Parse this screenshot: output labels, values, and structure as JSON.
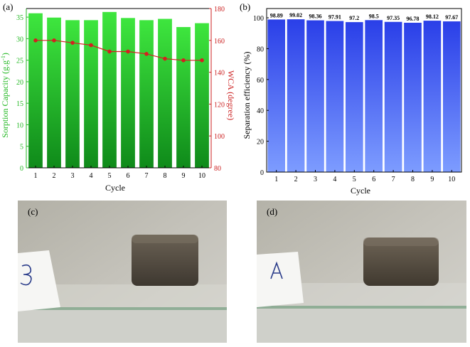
{
  "chart_data": [
    {
      "panel_label": "(a)",
      "type": "bar",
      "categories": [
        "1",
        "2",
        "3",
        "4",
        "5",
        "6",
        "7",
        "8",
        "9",
        "10"
      ],
      "xlabel": "Cycle",
      "ylabel": "Sorption Capacity (g.g",
      "ylabel_sup": "-1",
      "ylabel_tail": ")",
      "ylabel_color": "#22b822",
      "ylim": [
        0,
        37
      ],
      "yticks": [
        0,
        5,
        10,
        15,
        20,
        25,
        30,
        35
      ],
      "series": [
        {
          "values": [
            35.9,
            34.9,
            34.3,
            34.3,
            36.2,
            34.8,
            34.3,
            34.6,
            32.7,
            33.6
          ],
          "color": "#2bd42b"
        }
      ],
      "secondary": {
        "type": "line",
        "ylabel": "WCA (degree)",
        "ylabel_color": "#cc2222",
        "ylim": [
          80,
          180
        ],
        "yticks": [
          80,
          100,
          120,
          140,
          160,
          180
        ],
        "values": [
          160,
          160,
          158.5,
          157,
          153,
          153,
          151.5,
          148.5,
          147.5,
          147.5
        ],
        "color": "#d42020"
      }
    },
    {
      "panel_label": "(b)",
      "type": "bar",
      "categories": [
        "1",
        "2",
        "3",
        "4",
        "5",
        "6",
        "7",
        "8",
        "9",
        "10"
      ],
      "xlabel": "Cycle",
      "ylabel": "Separation efficiency (%)",
      "ylim": [
        0,
        106
      ],
      "yticks": [
        0,
        20,
        40,
        60,
        80,
        100
      ],
      "series": [
        {
          "values": [
            98.89,
            99.02,
            98.36,
            97.91,
            97.2,
            98.5,
            97.35,
            96.78,
            98.12,
            97.67
          ],
          "color": "#3a5cf0"
        }
      ],
      "data_labels": [
        "98.89",
        "99.02",
        "98.36",
        "97.91",
        "97.2",
        "98.5",
        "97.35",
        "96.78",
        "98.12",
        "97.67"
      ]
    }
  ],
  "photos": [
    {
      "panel_label": "(c)",
      "card_text": "B"
    },
    {
      "panel_label": "(d)",
      "card_text": "A"
    }
  ]
}
